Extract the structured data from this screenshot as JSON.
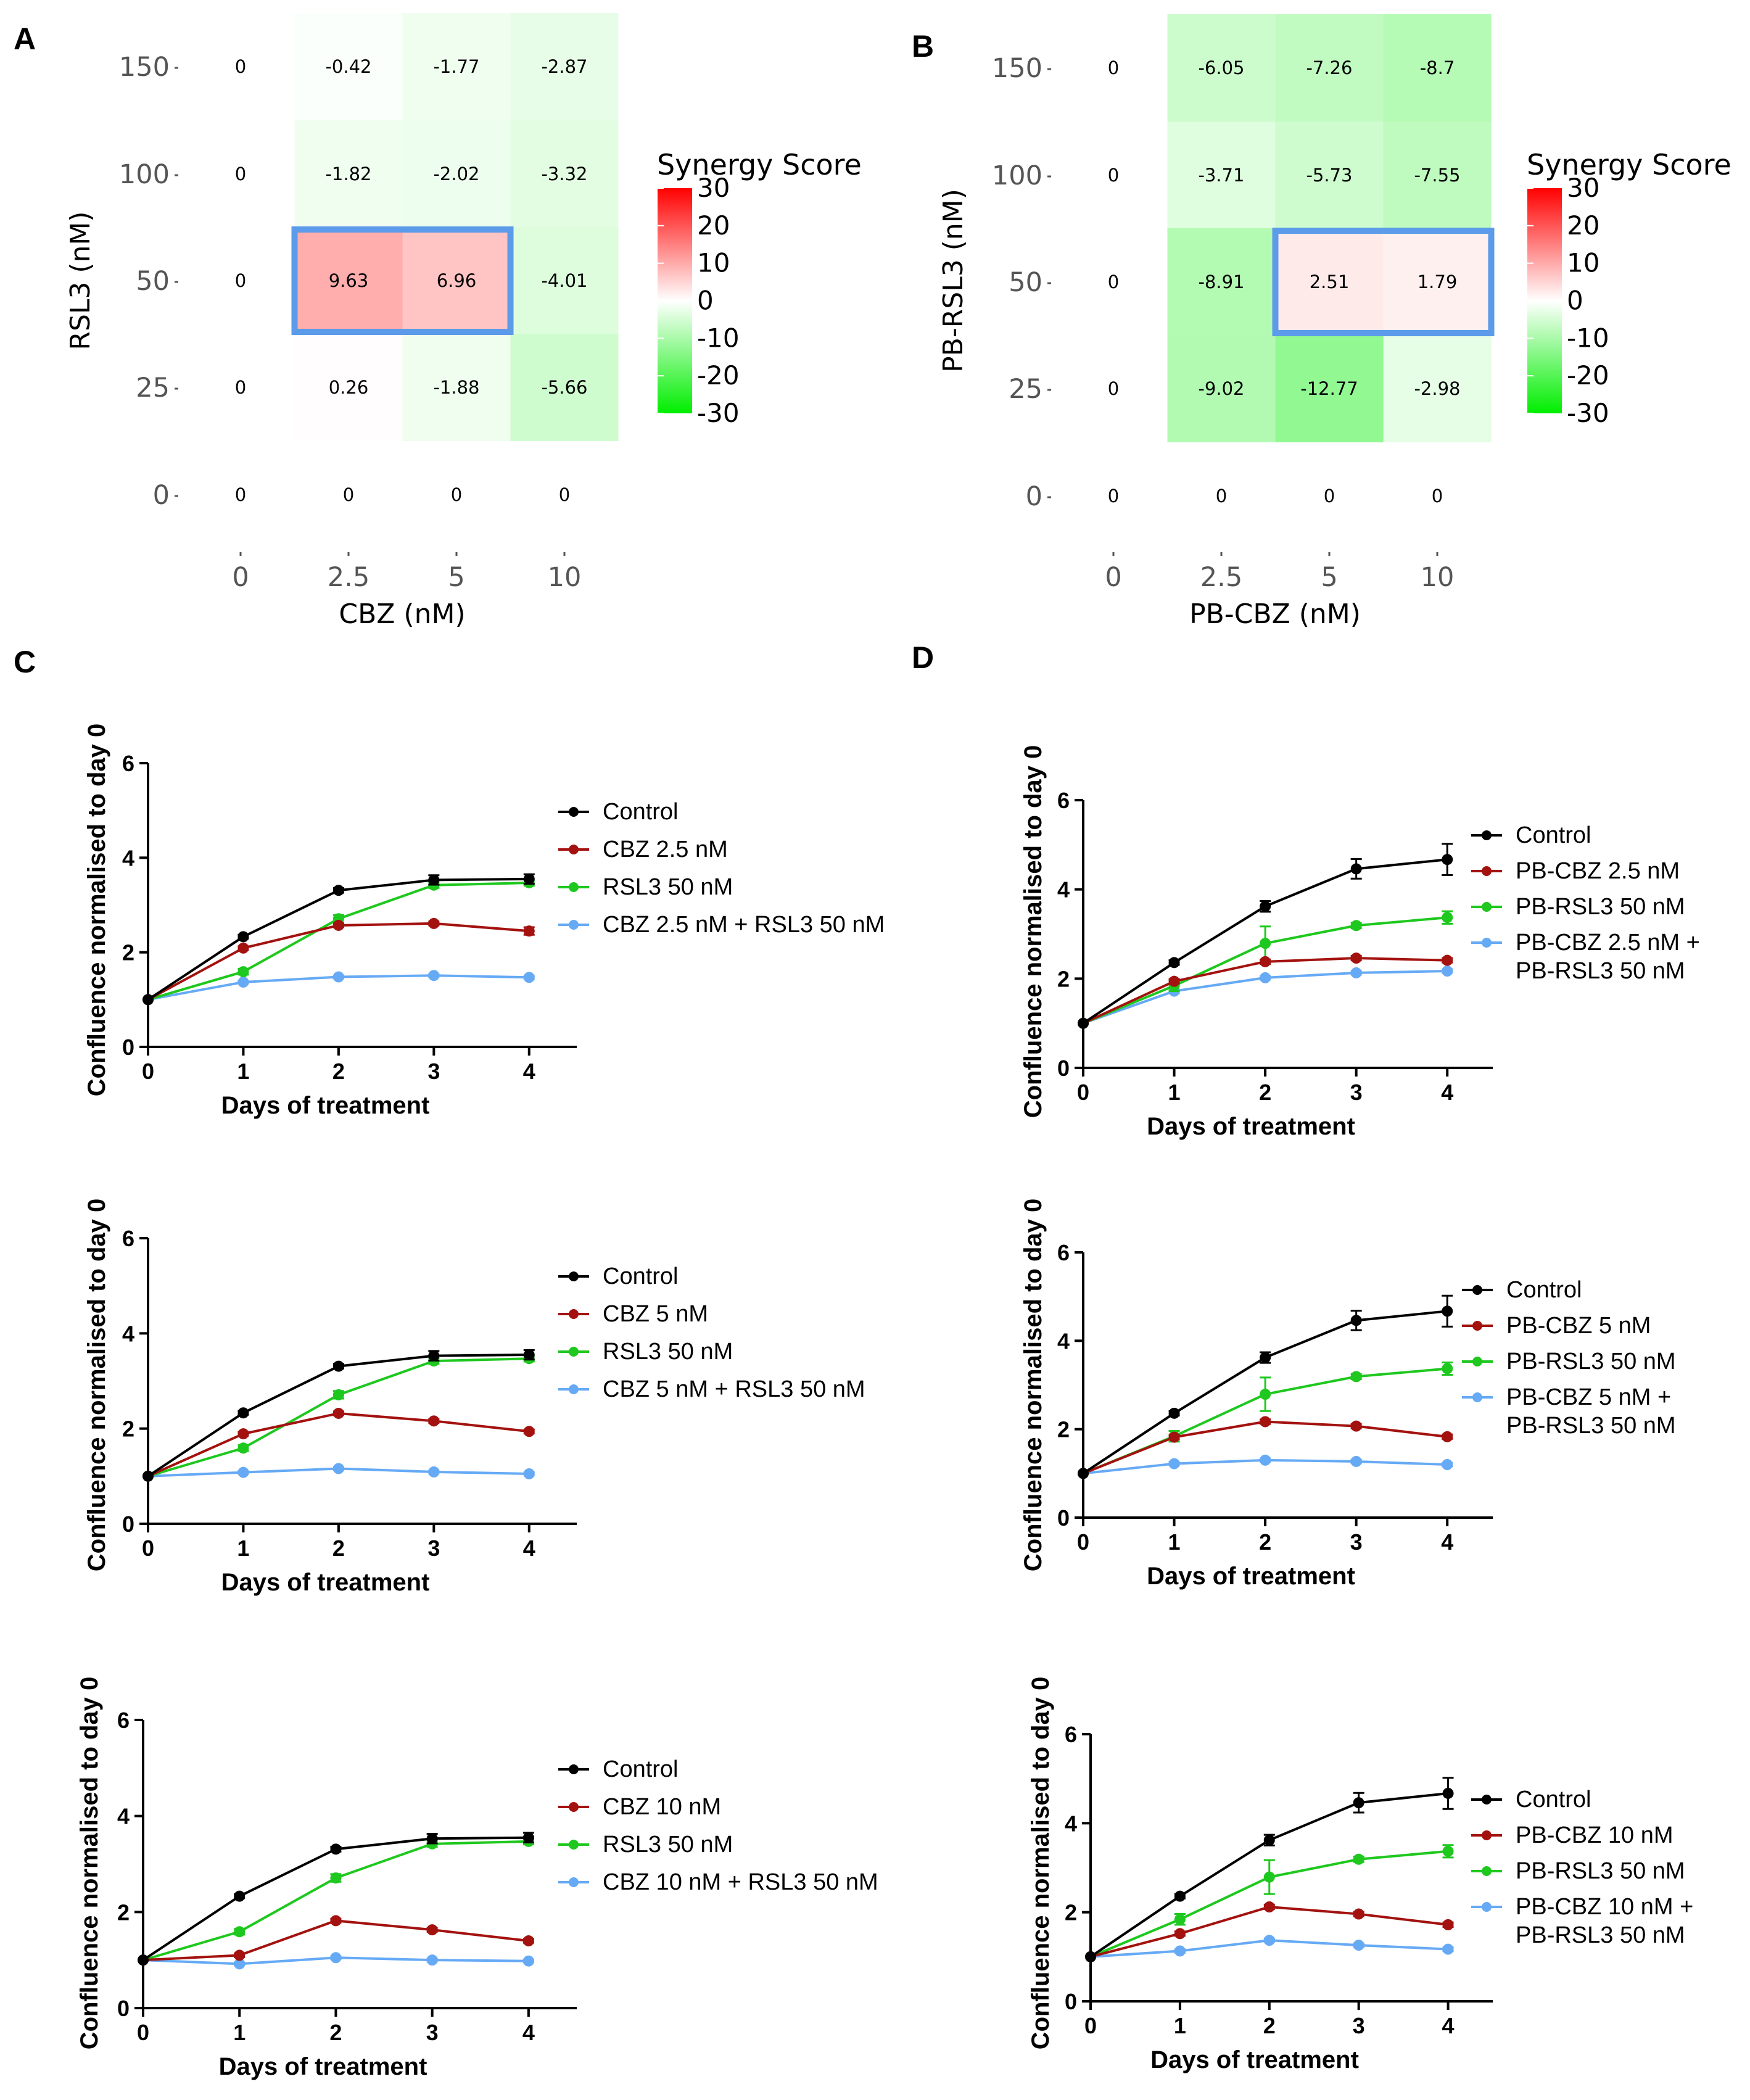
{
  "panel_letters": [
    "A",
    "B",
    "C",
    "D"
  ],
  "colors": {
    "control": "#000000",
    "single_a": "#a3120f",
    "single_b": "#1ec81e",
    "combo": "#66aaf5",
    "highlight_box": "#5b9bea",
    "pos_max": "#ff0000",
    "neg_max": "#00ee00"
  },
  "chart_data": [
    {
      "id": "A",
      "type": "heatmap",
      "title": "",
      "xlabel": "CBZ (nM)",
      "ylabel": "RSL3 (nM)",
      "x_categories": [
        "0",
        "2.5",
        "5",
        "10"
      ],
      "y_categories": [
        "150",
        "100",
        "50",
        "25",
        "0"
      ],
      "values": [
        [
          0,
          -0.42,
          -1.77,
          -2.87
        ],
        [
          0,
          -1.82,
          -2.02,
          -3.32
        ],
        [
          0,
          9.63,
          6.96,
          -4.01
        ],
        [
          0,
          0.26,
          -1.88,
          -5.66
        ],
        [
          0,
          0,
          0,
          0
        ]
      ],
      "cell_labels": [
        [
          "0",
          "-0.42",
          "-1.77",
          "-2.87"
        ],
        [
          "0",
          "-1.82",
          "-2.02",
          "-3.32"
        ],
        [
          "0",
          "9.63",
          "6.96",
          "-4.01"
        ],
        [
          "0",
          "0.26",
          "-1.88",
          "-5.66"
        ],
        [
          "0",
          "0",
          "0",
          "0"
        ]
      ],
      "highlight": {
        "row": 2,
        "cols": [
          1,
          2
        ]
      },
      "colorbar": {
        "title": "Synergy Score",
        "min": -30,
        "max": 30,
        "ticks": [
          "30",
          "20",
          "10",
          "0",
          "-10",
          "-20",
          "-30"
        ]
      }
    },
    {
      "id": "B",
      "type": "heatmap",
      "title": "",
      "xlabel": "PB-CBZ (nM)",
      "ylabel": "PB-RSL3 (nM)",
      "x_categories": [
        "0",
        "2.5",
        "5",
        "10"
      ],
      "y_categories": [
        "150",
        "100",
        "50",
        "25",
        "0"
      ],
      "values": [
        [
          0,
          -6.05,
          -7.26,
          -8.7
        ],
        [
          0,
          -3.71,
          -5.73,
          -7.55
        ],
        [
          0,
          -8.91,
          2.51,
          1.79
        ],
        [
          0,
          -9.02,
          -12.77,
          -2.98
        ],
        [
          0,
          0,
          0,
          0
        ]
      ],
      "cell_labels": [
        [
          "0",
          "-6.05",
          "-7.26",
          "-8.7"
        ],
        [
          "0",
          "-3.71",
          "-5.73",
          "-7.55"
        ],
        [
          "0",
          "-8.91",
          "2.51",
          "1.79"
        ],
        [
          "0",
          "-9.02",
          "-12.77",
          "-2.98"
        ],
        [
          "0",
          "0",
          "0",
          "0"
        ]
      ],
      "highlight": {
        "row": 2,
        "cols": [
          2,
          3
        ]
      },
      "colorbar": {
        "title": "Synergy Score",
        "min": -30,
        "max": 30,
        "ticks": [
          "30",
          "20",
          "10",
          "0",
          "-10",
          "-20",
          "-30"
        ]
      }
    },
    {
      "id": "C1",
      "type": "line",
      "xlabel": "Days of treatment",
      "ylabel": "Confluence normalised to day 0",
      "x": [
        0,
        1,
        2,
        3,
        4
      ],
      "x_ticks": [
        "0",
        "1",
        "2",
        "3",
        "4"
      ],
      "y_ticks": [
        "0",
        "2",
        "4",
        "6"
      ],
      "xlim": [
        0,
        4.5
      ],
      "ylim": [
        0,
        6
      ],
      "series": [
        {
          "name": "Control",
          "legend": [
            "Control"
          ],
          "color_key": "control",
          "values": [
            1,
            2.33,
            3.31,
            3.53,
            3.55
          ],
          "errors": [
            0,
            0.04,
            0.05,
            0.1,
            0.1
          ]
        },
        {
          "name": "CBZ 2.5 nM",
          "legend": [
            "CBZ 2.5 nM"
          ],
          "color_key": "single_a",
          "values": [
            1,
            2.09,
            2.57,
            2.61,
            2.45
          ],
          "errors": [
            0,
            0.04,
            0.04,
            0.04,
            0.08
          ]
        },
        {
          "name": "RSL3 50 nM",
          "legend": [
            "RSL3 50 nM"
          ],
          "color_key": "single_b",
          "values": [
            1,
            1.59,
            2.71,
            3.42,
            3.47
          ],
          "errors": [
            0,
            0.06,
            0.08,
            0.06,
            0.06
          ]
        },
        {
          "name": "CBZ 2.5 nM + RSL3 50 nM",
          "legend": [
            "CBZ 2.5 nM + RSL3 50 nM"
          ],
          "color_key": "combo",
          "values": [
            1,
            1.37,
            1.48,
            1.51,
            1.47
          ],
          "errors": [
            0,
            0.03,
            0.03,
            0.03,
            0.03
          ]
        }
      ]
    },
    {
      "id": "C2",
      "type": "line",
      "xlabel": "Days of treatment",
      "ylabel": "Confluence normalised to day 0",
      "x": [
        0,
        1,
        2,
        3,
        4
      ],
      "x_ticks": [
        "0",
        "1",
        "2",
        "3",
        "4"
      ],
      "y_ticks": [
        "0",
        "2",
        "4",
        "6"
      ],
      "xlim": [
        0,
        4.5
      ],
      "ylim": [
        0,
        6
      ],
      "series": [
        {
          "name": "Control",
          "legend": [
            "Control"
          ],
          "color_key": "control",
          "values": [
            1,
            2.33,
            3.31,
            3.53,
            3.55
          ],
          "errors": [
            0,
            0.04,
            0.05,
            0.1,
            0.1
          ]
        },
        {
          "name": "CBZ 5 nM",
          "legend": [
            "CBZ 5 nM"
          ],
          "color_key": "single_a",
          "values": [
            1,
            1.89,
            2.32,
            2.16,
            1.94
          ],
          "errors": [
            0,
            0.04,
            0.04,
            0.04,
            0.04
          ]
        },
        {
          "name": "RSL3 50 nM",
          "legend": [
            "RSL3 50 nM"
          ],
          "color_key": "single_b",
          "values": [
            1,
            1.59,
            2.71,
            3.42,
            3.47
          ],
          "errors": [
            0,
            0.06,
            0.08,
            0.06,
            0.06
          ]
        },
        {
          "name": "CBZ 5 nM + RSL3 50 nM",
          "legend": [
            "CBZ 5 nM + RSL3 50 nM"
          ],
          "color_key": "combo",
          "values": [
            1,
            1.08,
            1.16,
            1.09,
            1.05
          ],
          "errors": [
            0,
            0.03,
            0.03,
            0.03,
            0.03
          ]
        }
      ]
    },
    {
      "id": "C3",
      "type": "line",
      "xlabel": "Days of treatment",
      "ylabel": "Confluence normalised to day 0",
      "x": [
        0,
        1,
        2,
        3,
        4
      ],
      "x_ticks": [
        "0",
        "1",
        "2",
        "3",
        "4"
      ],
      "y_ticks": [
        "0",
        "2",
        "4",
        "6"
      ],
      "xlim": [
        0,
        4.5
      ],
      "ylim": [
        0,
        6
      ],
      "series": [
        {
          "name": "Control",
          "legend": [
            "Control"
          ],
          "color_key": "control",
          "values": [
            1,
            2.33,
            3.31,
            3.53,
            3.55
          ],
          "errors": [
            0,
            0.04,
            0.05,
            0.1,
            0.1
          ]
        },
        {
          "name": "CBZ 10 nM",
          "legend": [
            "CBZ 10 nM"
          ],
          "color_key": "single_a",
          "values": [
            1,
            1.1,
            1.82,
            1.63,
            1.4
          ],
          "errors": [
            0,
            0.04,
            0.04,
            0.04,
            0.04
          ]
        },
        {
          "name": "RSL3 50 nM",
          "legend": [
            "RSL3 50 nM"
          ],
          "color_key": "single_b",
          "values": [
            1,
            1.59,
            2.71,
            3.42,
            3.47
          ],
          "errors": [
            0,
            0.06,
            0.08,
            0.06,
            0.06
          ]
        },
        {
          "name": "CBZ 10 nM + RSL3 50 nM",
          "legend": [
            "CBZ 10 nM + RSL3 50 nM"
          ],
          "color_key": "combo",
          "values": [
            1,
            0.92,
            1.05,
            1.0,
            0.98
          ],
          "errors": [
            0,
            0.03,
            0.03,
            0.03,
            0.03
          ]
        }
      ]
    },
    {
      "id": "D1",
      "type": "line",
      "xlabel": "Days of treatment",
      "ylabel": "Confluence normalised to day 0",
      "x": [
        0,
        1,
        2,
        3,
        4
      ],
      "x_ticks": [
        "0",
        "1",
        "2",
        "3",
        "4"
      ],
      "y_ticks": [
        "0",
        "2",
        "4",
        "6"
      ],
      "xlim": [
        0,
        4.5
      ],
      "ylim": [
        0,
        6
      ],
      "series": [
        {
          "name": "Control",
          "legend": [
            "Control"
          ],
          "color_key": "control",
          "values": [
            1,
            2.36,
            3.62,
            4.46,
            4.67
          ],
          "errors": [
            0,
            0.05,
            0.12,
            0.22,
            0.35
          ]
        },
        {
          "name": "PB-CBZ 2.5 nM",
          "legend": [
            "PB-CBZ 2.5 nM"
          ],
          "color_key": "single_a",
          "values": [
            1,
            1.94,
            2.38,
            2.46,
            2.41
          ],
          "errors": [
            0,
            0.05,
            0.05,
            0.05,
            0.05
          ]
        },
        {
          "name": "PB-RSL3 50 nM",
          "legend": [
            "PB-RSL3 50 nM"
          ],
          "color_key": "single_b",
          "values": [
            1,
            1.84,
            2.79,
            3.19,
            3.37
          ],
          "errors": [
            0,
            0.12,
            0.38,
            0.06,
            0.14
          ]
        },
        {
          "name": "PB-CBZ 2.5 nM + PB-RSL3 50 nM",
          "legend": [
            "PB-CBZ 2.5 nM +",
            "PB-RSL3 50 nM"
          ],
          "color_key": "combo",
          "values": [
            1,
            1.72,
            2.02,
            2.13,
            2.17
          ],
          "errors": [
            0,
            0.04,
            0.04,
            0.04,
            0.04
          ]
        }
      ]
    },
    {
      "id": "D2",
      "type": "line",
      "xlabel": "Days of treatment",
      "ylabel": "Confluence normalised to day 0",
      "x": [
        0,
        1,
        2,
        3,
        4
      ],
      "x_ticks": [
        "0",
        "1",
        "2",
        "3",
        "4"
      ],
      "y_ticks": [
        "0",
        "2",
        "4",
        "6"
      ],
      "xlim": [
        0,
        4.5
      ],
      "ylim": [
        0,
        6
      ],
      "series": [
        {
          "name": "Control",
          "legend": [
            "Control"
          ],
          "color_key": "control",
          "values": [
            1,
            2.36,
            3.62,
            4.46,
            4.67
          ],
          "errors": [
            0,
            0.05,
            0.12,
            0.22,
            0.35
          ]
        },
        {
          "name": "PB-CBZ 5 nM",
          "legend": [
            "PB-CBZ 5 nM"
          ],
          "color_key": "single_a",
          "values": [
            1,
            1.82,
            2.17,
            2.07,
            1.83
          ],
          "errors": [
            0,
            0.05,
            0.05,
            0.05,
            0.05
          ]
        },
        {
          "name": "PB-RSL3 50 nM",
          "legend": [
            "PB-RSL3 50 nM"
          ],
          "color_key": "single_b",
          "values": [
            1,
            1.84,
            2.79,
            3.19,
            3.37
          ],
          "errors": [
            0,
            0.12,
            0.38,
            0.06,
            0.14
          ]
        },
        {
          "name": "PB-CBZ 5 nM + PB-RSL3 50 nM",
          "legend": [
            "PB-CBZ 5 nM +",
            "PB-RSL3 50 nM"
          ],
          "color_key": "combo",
          "values": [
            1,
            1.22,
            1.3,
            1.27,
            1.2
          ],
          "errors": [
            0,
            0.04,
            0.04,
            0.04,
            0.04
          ]
        }
      ]
    },
    {
      "id": "D3",
      "type": "line",
      "xlabel": "Days of treatment",
      "ylabel": "Confluence normalised to day 0",
      "x": [
        0,
        1,
        2,
        3,
        4
      ],
      "x_ticks": [
        "0",
        "1",
        "2",
        "3",
        "4"
      ],
      "y_ticks": [
        "0",
        "2",
        "4",
        "6"
      ],
      "xlim": [
        0,
        4.5
      ],
      "ylim": [
        0,
        6
      ],
      "series": [
        {
          "name": "Control",
          "legend": [
            "Control"
          ],
          "color_key": "control",
          "values": [
            1,
            2.36,
            3.62,
            4.46,
            4.67
          ],
          "errors": [
            0,
            0.05,
            0.12,
            0.22,
            0.35
          ]
        },
        {
          "name": "PB-CBZ 10 nM",
          "legend": [
            "PB-CBZ 10 nM"
          ],
          "color_key": "single_a",
          "values": [
            1,
            1.52,
            2.12,
            1.96,
            1.72
          ],
          "errors": [
            0,
            0.05,
            0.05,
            0.05,
            0.05
          ]
        },
        {
          "name": "PB-RSL3 50 nM",
          "legend": [
            "PB-RSL3 50 nM"
          ],
          "color_key": "single_b",
          "values": [
            1,
            1.84,
            2.79,
            3.19,
            3.37
          ],
          "errors": [
            0,
            0.12,
            0.38,
            0.06,
            0.14
          ]
        },
        {
          "name": "PB-CBZ 10 nM + PB-RSL3 50 nM",
          "legend": [
            "PB-CBZ 10 nM +",
            "PB-RSL3 50 nM"
          ],
          "color_key": "combo",
          "values": [
            1,
            1.13,
            1.37,
            1.26,
            1.17
          ],
          "errors": [
            0,
            0.04,
            0.04,
            0.04,
            0.04
          ]
        }
      ]
    }
  ]
}
